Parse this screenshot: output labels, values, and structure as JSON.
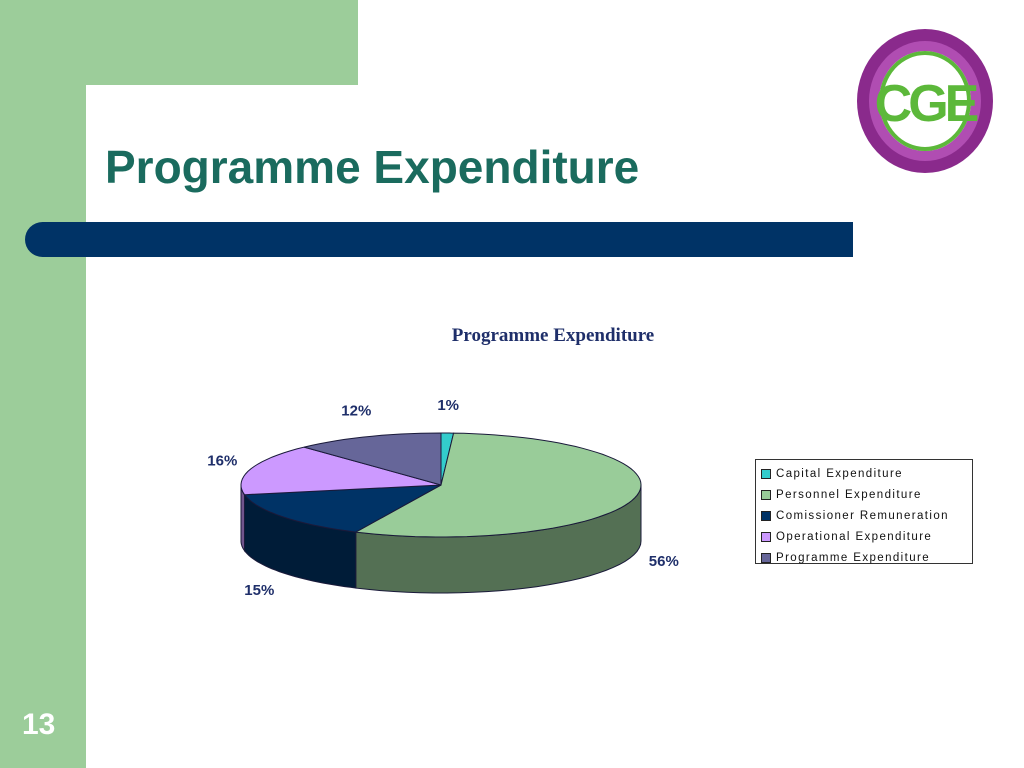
{
  "slide": {
    "title": "Programme Expenditure",
    "number": "13",
    "logo_text": "CGE"
  },
  "colors": {
    "sidebar": "#9ccd9a",
    "title_text": "#1a6b5e",
    "title_bar": "#003366",
    "chart_text": "#1f2f6a"
  },
  "chart_data": {
    "type": "pie",
    "title": "Programme Expenditure",
    "categories": [
      "Capital Expenditure",
      "Personnel Expenditure",
      "Comissioner Remuneration",
      "Operational Expenditure",
      "Programme Expenditure"
    ],
    "values": [
      1,
      56,
      15,
      16,
      12
    ],
    "labels": [
      "1%",
      "56%",
      "15%",
      "16%",
      "12%"
    ],
    "colors": [
      "#33cccc",
      "#99cc99",
      "#003366",
      "#cc99ff",
      "#666699"
    ],
    "style": "3d",
    "legend_position": "right"
  }
}
